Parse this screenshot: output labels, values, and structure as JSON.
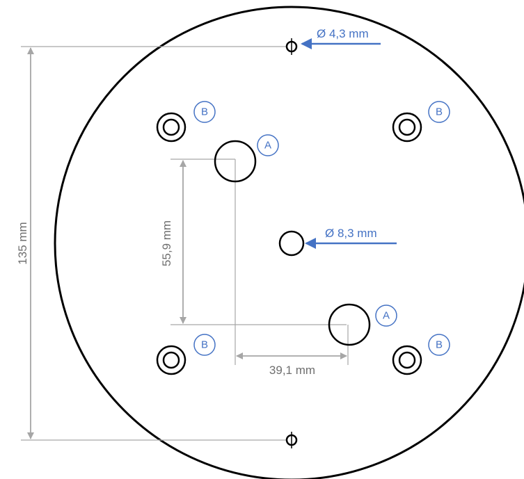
{
  "dimensions": {
    "plate_height": "135 mm",
    "hole_spacing_vertical": "55,9 mm",
    "hole_spacing_horizontal": "39,1 mm"
  },
  "callouts": {
    "small_hole": "Ø 4,3 mm",
    "center_hole": "Ø 8,3 mm"
  },
  "badges": {
    "a": "A",
    "b": "B"
  },
  "colors": {
    "outline": "#000000",
    "dimension": "#a6a6a6",
    "dimension_text": "#6f6f6f",
    "callout": "#4472c4"
  }
}
